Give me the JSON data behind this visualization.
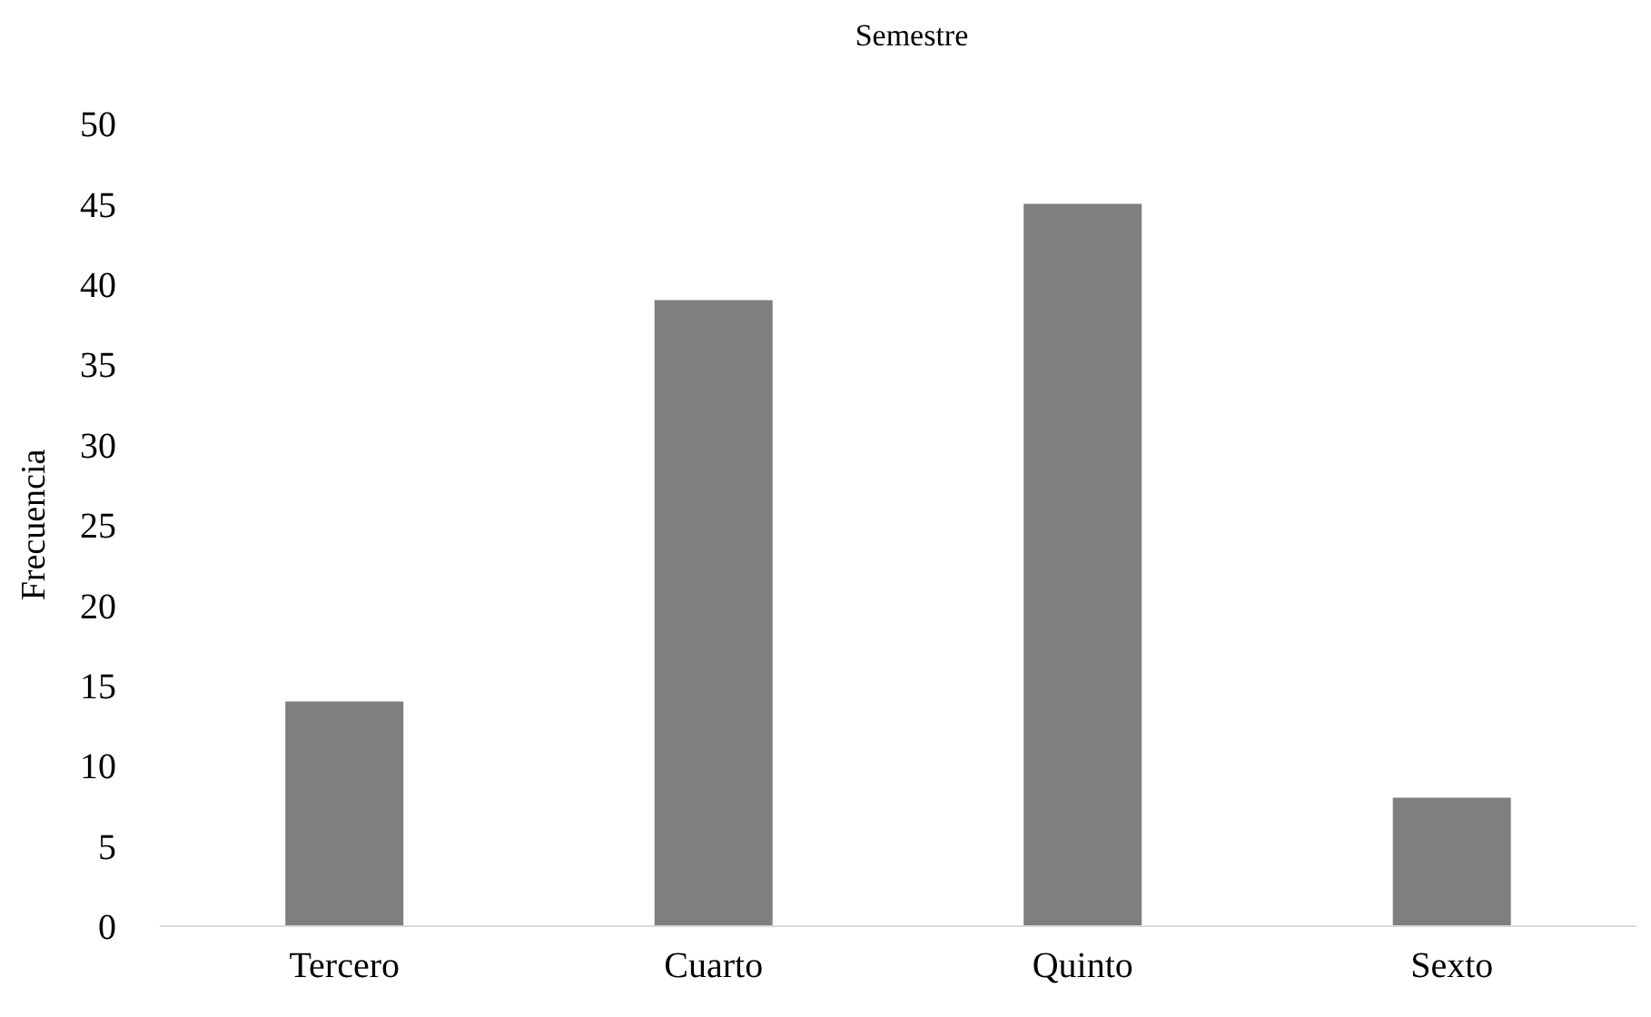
{
  "chart_data": {
    "type": "bar",
    "title": "Semestre",
    "ylabel": "Frecuencia",
    "categories": [
      "Tercero",
      "Cuarto",
      "Quinto",
      "Sexto"
    ],
    "values": [
      14,
      39,
      45,
      8
    ],
    "color": "#7f7f7f",
    "ylim": [
      0,
      50
    ],
    "yticks": [
      0,
      5,
      10,
      15,
      20,
      25,
      30,
      35,
      40,
      45,
      50
    ],
    "grid": false,
    "legend": false
  }
}
